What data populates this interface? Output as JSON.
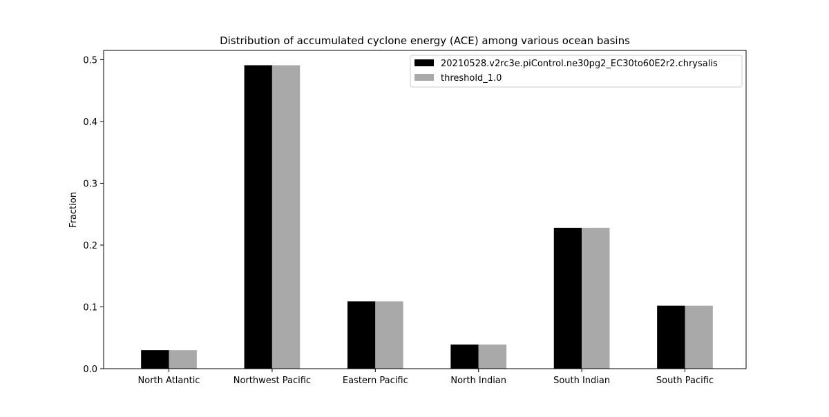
{
  "chart_data": {
    "type": "bar",
    "title": "Distribution of accumulated cyclone energy (ACE) among various ocean basins",
    "xlabel": "",
    "ylabel": "Fraction",
    "categories": [
      "North Atlantic",
      "Northwest Pacific",
      "Eastern Pacific",
      "North Indian",
      "South Indian",
      "South Pacific"
    ],
    "series": [
      {
        "name": "20210528.v2rc3e.piControl.ne30pg2_EC30to60E2r2.chrysalis",
        "color": "#000000",
        "values": [
          0.03,
          0.491,
          0.109,
          0.039,
          0.228,
          0.102
        ]
      },
      {
        "name": "threshold_1.0",
        "color": "#a9a9a9",
        "values": [
          0.03,
          0.491,
          0.109,
          0.039,
          0.228,
          0.102
        ]
      }
    ],
    "ylim": [
      0,
      0.515
    ],
    "yticks": [
      0.0,
      0.1,
      0.2,
      0.3,
      0.4,
      0.5
    ],
    "ytick_labels": [
      "0.0",
      "0.1",
      "0.2",
      "0.3",
      "0.4",
      "0.5"
    ],
    "grid": false,
    "legend_position": "top-right"
  }
}
